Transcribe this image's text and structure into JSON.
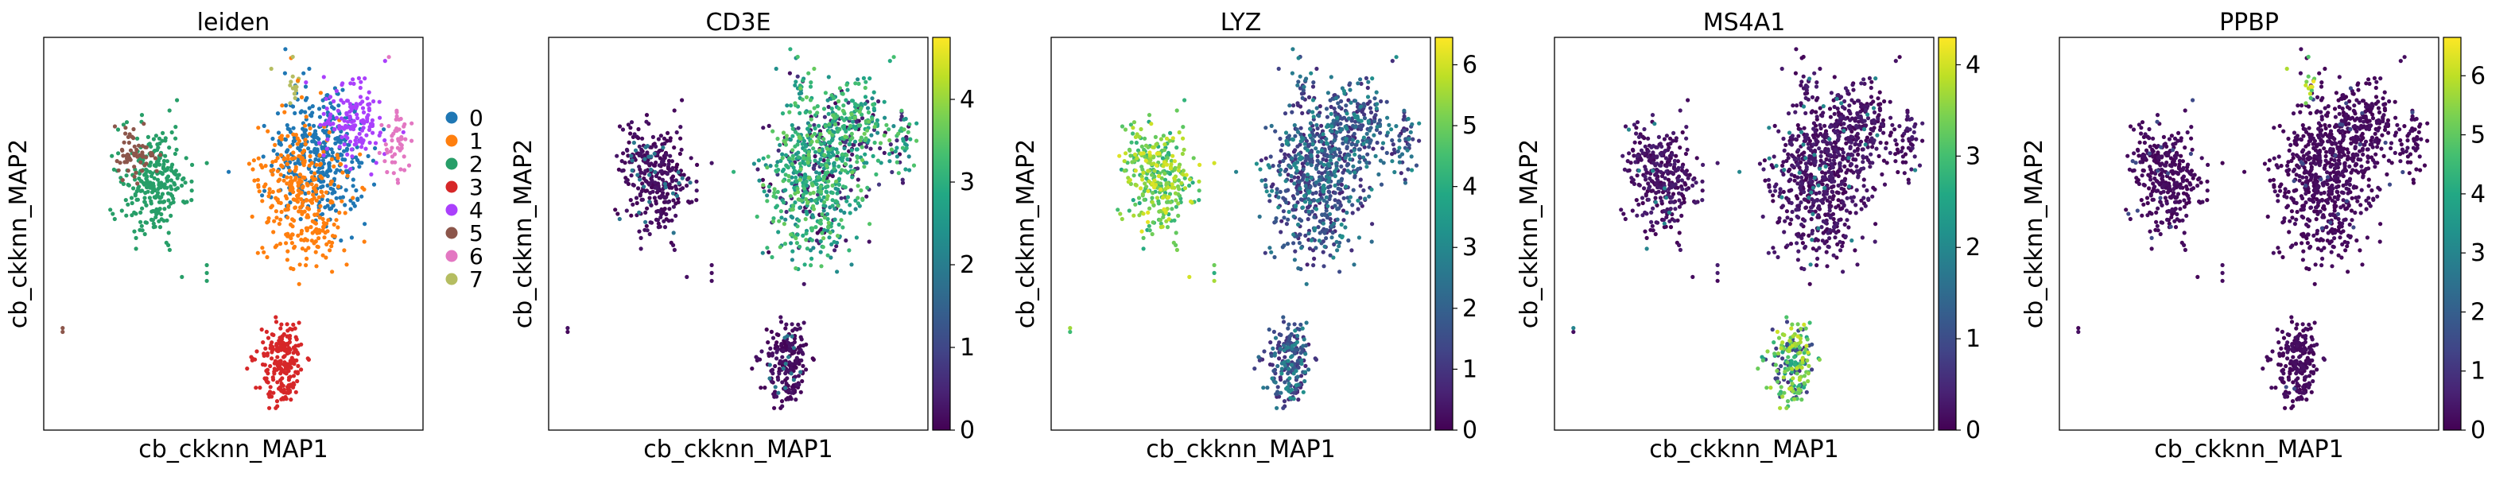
{
  "figure": {
    "x_label": "cb_ckknn_MAP1",
    "y_label": "cb_ckknn_MAP2"
  },
  "chart_data": [
    {
      "type": "scatter",
      "title": "leiden",
      "xlabel": "cb_ckknn_MAP1",
      "ylabel": "cb_ckknn_MAP2",
      "color_by": "category",
      "legend_position": "right",
      "legend": [
        {
          "label": "0",
          "color": "#1f77b4"
        },
        {
          "label": "1",
          "color": "#ff7f0e"
        },
        {
          "label": "2",
          "color": "#279e68"
        },
        {
          "label": "3",
          "color": "#d62728"
        },
        {
          "label": "4",
          "color": "#aa40fc"
        },
        {
          "label": "5",
          "color": "#8c564b"
        },
        {
          "label": "6",
          "color": "#e377c2"
        },
        {
          "label": "7",
          "color": "#b5bd61"
        }
      ]
    },
    {
      "type": "scatter",
      "title": "CD3E",
      "xlabel": "cb_ckknn_MAP1",
      "ylabel": "cb_ckknn_MAP2",
      "color_by": "expression",
      "colormap": "viridis",
      "colorbar": {
        "min": 0,
        "max": 4.75,
        "ticks": [
          0,
          1,
          2,
          3,
          4
        ]
      }
    },
    {
      "type": "scatter",
      "title": "LYZ",
      "xlabel": "cb_ckknn_MAP1",
      "ylabel": "cb_ckknn_MAP2",
      "color_by": "expression",
      "colormap": "viridis",
      "colorbar": {
        "min": 0,
        "max": 6.45,
        "ticks": [
          0,
          1,
          2,
          3,
          4,
          5,
          6
        ]
      }
    },
    {
      "type": "scatter",
      "title": "MS4A1",
      "xlabel": "cb_ckknn_MAP1",
      "ylabel": "cb_ckknn_MAP2",
      "color_by": "expression",
      "colormap": "viridis",
      "colorbar": {
        "min": 0,
        "max": 4.3,
        "ticks": [
          0,
          1,
          2,
          3,
          4
        ]
      }
    },
    {
      "type": "scatter",
      "title": "PPBP",
      "xlabel": "cb_ckknn_MAP1",
      "ylabel": "cb_ckknn_MAP2",
      "color_by": "expression",
      "colormap": "viridis",
      "colorbar": {
        "min": 0,
        "max": 6.65,
        "ticks": [
          0,
          1,
          2,
          3,
          4,
          5,
          6
        ]
      }
    }
  ]
}
